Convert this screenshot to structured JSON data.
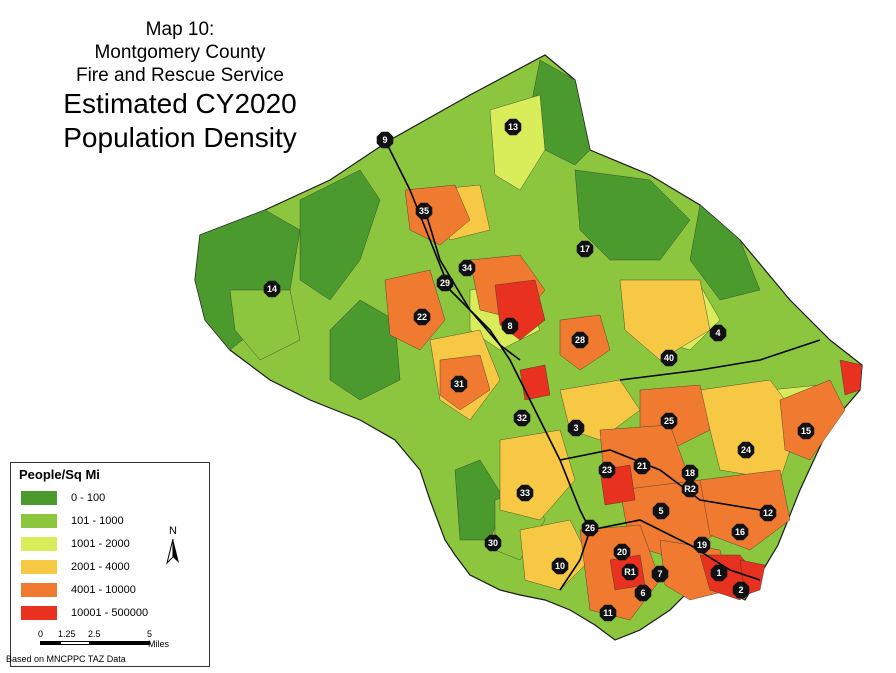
{
  "title": {
    "line1": "Map 10:",
    "line2": "Montgomery County",
    "line3": "Fire and Rescue Service",
    "line4": "Estimated CY2020",
    "line5": "Population Density"
  },
  "legend": {
    "title": "People/Sq Mi",
    "items": [
      {
        "label": "0 - 100",
        "color": "#4a9a2e"
      },
      {
        "label": "101 - 1000",
        "color": "#8cc63f"
      },
      {
        "label": "1001 - 2000",
        "color": "#d9ec5a"
      },
      {
        "label": "2001 - 4000",
        "color": "#f7c843"
      },
      {
        "label": "4001 - 10000",
        "color": "#ef7a30"
      },
      {
        "label": "10001 - 500000",
        "color": "#e8321f"
      }
    ]
  },
  "north_arrow": {
    "label": "N"
  },
  "scale_bar": {
    "ticks": [
      "0",
      "1.25",
      "2.5",
      "5"
    ],
    "unit": "Miles"
  },
  "source_note": "Based on MNCPPC TAZ Data",
  "stations": [
    "9",
    "13",
    "35",
    "17",
    "34",
    "29",
    "14",
    "22",
    "8",
    "28",
    "4",
    "40",
    "31",
    "32",
    "3",
    "25",
    "15",
    "24",
    "23",
    "21",
    "18",
    "R2",
    "33",
    "5",
    "12",
    "16",
    "26",
    "19",
    "20",
    "30",
    "10",
    "R1",
    "7",
    "1",
    "6",
    "2",
    "11"
  ]
}
